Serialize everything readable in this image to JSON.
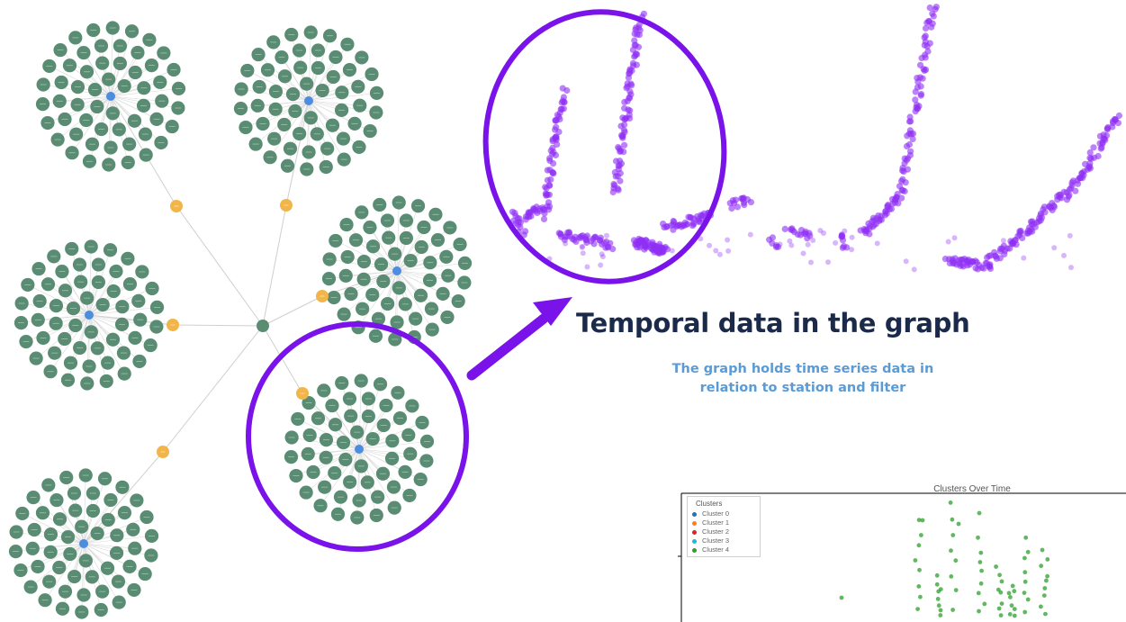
{
  "heading": {
    "title": "Temporal data in the graph",
    "subtitle_line1": "The graph holds time series data in",
    "subtitle_line2": "relation to station and filter"
  },
  "colors": {
    "filter_node": "#5a8c74",
    "station_node": "#4c8de0",
    "connector_node": "#f2b54a",
    "highlight": "#7a12ea",
    "series_point": "#8f2ef5",
    "subtitle": "#5b9bd5",
    "title": "#1b2a4a"
  },
  "clusters_chart": {
    "title": "Clusters Over Time",
    "legend_title": "Clusters",
    "legend": [
      {
        "label": "Cluster 0",
        "color": "#1f77b4"
      },
      {
        "label": "Cluster 1",
        "color": "#ff7f0e"
      },
      {
        "label": "Cluster 2",
        "color": "#d62728"
      },
      {
        "label": "Cluster 3",
        "color": "#17becf"
      },
      {
        "label": "Cluster 4",
        "color": "#2ca02c"
      }
    ]
  }
}
